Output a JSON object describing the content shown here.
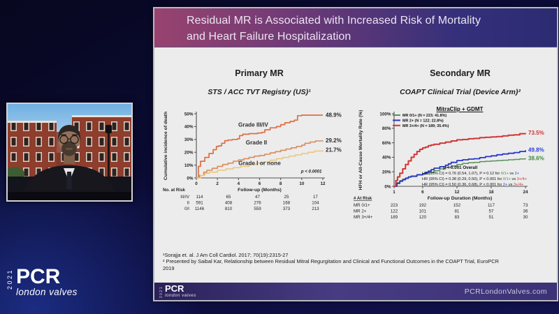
{
  "slide": {
    "title_line1": "Residual MR is Associated with Increased Risk of Mortality",
    "title_line2": "and Heart Failure Hospitalization",
    "footer": {
      "cite1": "¹Sorajja et. al.  J Am Coll Cardiol. 2017; 70(19):2315-27",
      "cite2": "² Presented by Saibal Kar, Relationship between Residual Mitral Regurgitation and Clinical and Functional Outcomes in the COAPT Trial, EuroPCR",
      "cite2_cont": "2019"
    },
    "bottom_bar": {
      "year": "2021",
      "brand": "PCR",
      "brand_sub": "london valves",
      "website": "PCRLondonValves.com"
    }
  },
  "outer_logo": {
    "year": "2021",
    "brand": "PCR",
    "brand_sub": "london valves"
  },
  "colors": {
    "title_bar_left": "#99436f",
    "title_bar_right": "#2b2b72",
    "slide_bg": "#ececec",
    "grade34": "#dd6f44",
    "grade2": "#db8a58",
    "grade1": "#ecc77f",
    "mr01": "#5b8f5b",
    "mr2": "#2838c8",
    "mr34": "#d23535"
  },
  "chart_data": [
    {
      "type": "line",
      "section_title": "Primary MR",
      "subtitle": "STS / ACC TVT Registry (US)¹",
      "xlabel": "Follow-up (Months)",
      "ylabel": "Cumulative incidence of death",
      "xlim": [
        0,
        12
      ],
      "ylim": [
        0,
        50
      ],
      "xticks": [
        0,
        2,
        4,
        6,
        8,
        10,
        12
      ],
      "yticks": [
        0,
        10,
        20,
        30,
        40,
        50
      ],
      "series": [
        {
          "name": "Grade III/IV",
          "color": "#dd6f44",
          "w": 1.7,
          "end_label": "48.9%",
          "end_color": "#2b2b2b",
          "points": [
            [
              0,
              0
            ],
            [
              0.2,
              9
            ],
            [
              0.4,
              13
            ],
            [
              0.8,
              16
            ],
            [
              1.2,
              19
            ],
            [
              1.6,
              22
            ],
            [
              1.9,
              24.5
            ],
            [
              2.1,
              25
            ],
            [
              2.4,
              27
            ],
            [
              2.7,
              29
            ],
            [
              3,
              29.5
            ],
            [
              3.4,
              30
            ],
            [
              3.9,
              30.5
            ],
            [
              4.1,
              33
            ],
            [
              4.4,
              34
            ],
            [
              5,
              34.5
            ],
            [
              5.8,
              35
            ],
            [
              6.2,
              35.5
            ],
            [
              6.5,
              37.5
            ],
            [
              7,
              39
            ],
            [
              7.6,
              40
            ],
            [
              8,
              41.5
            ],
            [
              8.4,
              43
            ],
            [
              8.9,
              44
            ],
            [
              9.3,
              45
            ],
            [
              9.6,
              48.5
            ],
            [
              10,
              48.9
            ],
            [
              12,
              48.9
            ]
          ]
        },
        {
          "name": "Grade II",
          "color": "#db8a58",
          "w": 1.6,
          "end_label": "29.2%",
          "end_color": "#2b2b2b",
          "points": [
            [
              0,
              0
            ],
            [
              0.3,
              2
            ],
            [
              0.7,
              4.5
            ],
            [
              1,
              6
            ],
            [
              1.5,
              7.5
            ],
            [
              2,
              9
            ],
            [
              2.5,
              10.5
            ],
            [
              3,
              11.5
            ],
            [
              3.5,
              13
            ],
            [
              4,
              14
            ],
            [
              4.5,
              15
            ],
            [
              5,
              16
            ],
            [
              5.5,
              17
            ],
            [
              6,
              17.5
            ],
            [
              6.5,
              18.5
            ],
            [
              7,
              19.5
            ],
            [
              7.5,
              20.5
            ],
            [
              8,
              21.5
            ],
            [
              8.5,
              22.5
            ],
            [
              9,
              23.5
            ],
            [
              9.5,
              24.5
            ],
            [
              10,
              25.5
            ],
            [
              10.3,
              27
            ],
            [
              10.8,
              28
            ],
            [
              11.3,
              28.8
            ],
            [
              12,
              29.2
            ]
          ]
        },
        {
          "name": "Grade I or none",
          "color": "#ecc77f",
          "w": 1.6,
          "end_label": "21.7%",
          "end_color": "#2b2b2b",
          "points": [
            [
              0,
              0
            ],
            [
              0.4,
              2
            ],
            [
              0.8,
              3.5
            ],
            [
              1.2,
              4.5
            ],
            [
              2,
              6
            ],
            [
              2.8,
              7
            ],
            [
              3.5,
              8
            ],
            [
              4.2,
              9
            ],
            [
              5,
              10.5
            ],
            [
              5.8,
              11.5
            ],
            [
              6.4,
              12.5
            ],
            [
              7,
              13.8
            ],
            [
              7.6,
              15
            ],
            [
              8.2,
              16
            ],
            [
              8.8,
              17
            ],
            [
              9.4,
              18
            ],
            [
              10,
              19
            ],
            [
              10.6,
              20
            ],
            [
              11.2,
              21
            ],
            [
              12,
              21.7
            ]
          ]
        }
      ],
      "series_labels": [
        {
          "text": "Grade III/IV",
          "x": 5.4,
          "y": 40
        },
        {
          "text": "Grade II",
          "x": 5.7,
          "y": 26
        },
        {
          "text": "Grade I or none",
          "x": 6,
          "y": 10
        }
      ],
      "annotations": [
        {
          "x": 11.9,
          "y": 4,
          "anchor": "end",
          "bold": true,
          "italic": true,
          "parts": [
            {
              "t": "p < 0.0001",
              "c": "#222222"
            }
          ]
        }
      ],
      "risk_table": {
        "title": "No. at Risk",
        "label_anchor": "end",
        "col_x": [
          0.3,
          3.05,
          5.8,
          8.55,
          11.3
        ],
        "rows": [
          {
            "label": "III/IV",
            "values": [
              "114",
              "65",
              "47",
              "25",
              "17"
            ]
          },
          {
            "label": "II",
            "values": [
              "591",
              "408",
              "276",
              "168",
              "104"
            ]
          },
          {
            "label": "0/I",
            "values": [
              "1146",
              "810",
              "559",
              "373",
              "213"
            ]
          }
        ]
      }
    },
    {
      "type": "line",
      "section_title": "Secondary MR",
      "subtitle": "COAPT Clinical Trial (Device Arm)²",
      "chart_title": "MitraClip + GDMT",
      "xlabel": "Follow-up Duration (Months)",
      "ylabel": "HFH or All-Cause Mortality Rate (%)",
      "xlim": [
        1,
        24
      ],
      "ylim": [
        0,
        100
      ],
      "xticks": [
        1,
        6,
        12,
        18,
        24
      ],
      "yticks": [
        0,
        20,
        40,
        60,
        80,
        100
      ],
      "legend": [
        {
          "label": "MR 0/1+ (N = 223; 41.8%)",
          "color": "#5b8f5b"
        },
        {
          "label": "MR 2+ (N = 122; 22.8%)",
          "color": "#2838c8"
        },
        {
          "label": "MR 3+/4+ (N = 189; 35.4%)",
          "color": "#d23535"
        }
      ],
      "series": [
        {
          "name": "MR 0/1+",
          "color": "#5b8f5b",
          "w": 1.5,
          "end_label": "38.6%",
          "end_color": "#3f8a3f",
          "points": [
            [
              1,
              0
            ],
            [
              1.5,
              5
            ],
            [
              2,
              8
            ],
            [
              2.5,
              10
            ],
            [
              3,
              11.5
            ],
            [
              3.5,
              12.5
            ],
            [
              4,
              13.5
            ],
            [
              5,
              15.5
            ],
            [
              6,
              17
            ],
            [
              7,
              19
            ],
            [
              8,
              21.5
            ],
            [
              9,
              24
            ],
            [
              10,
              26
            ],
            [
              11,
              28
            ],
            [
              12,
              30
            ],
            [
              13,
              31.5
            ],
            [
              14,
              32.5
            ],
            [
              15,
              33
            ],
            [
              16,
              34
            ],
            [
              17,
              34.5
            ],
            [
              18,
              35
            ],
            [
              19,
              35.5
            ],
            [
              20,
              36
            ],
            [
              21,
              36.5
            ],
            [
              22,
              37
            ],
            [
              23,
              37.8
            ],
            [
              24,
              38.6
            ]
          ]
        },
        {
          "name": "MR 2+",
          "color": "#2838c8",
          "w": 1.8,
          "end_label": "49.8%",
          "end_color": "#2b3fd4",
          "points": [
            [
              1,
              0
            ],
            [
              1.5,
              4
            ],
            [
              2,
              7
            ],
            [
              2.5,
              9
            ],
            [
              3,
              11
            ],
            [
              3.5,
              13
            ],
            [
              4,
              14
            ],
            [
              5,
              16
            ],
            [
              6,
              17
            ],
            [
              6.5,
              19
            ],
            [
              7,
              21
            ],
            [
              7.5,
              23
            ],
            [
              8,
              25
            ],
            [
              9,
              27
            ],
            [
              10,
              29
            ],
            [
              10.5,
              31
            ],
            [
              11,
              33
            ],
            [
              12,
              35.5
            ],
            [
              13,
              36.5
            ],
            [
              14,
              37.5
            ],
            [
              15,
              38
            ],
            [
              16,
              39.5
            ],
            [
              17,
              41
            ],
            [
              18,
              42
            ],
            [
              19,
              43.5
            ],
            [
              20,
              44.5
            ],
            [
              21,
              45.5
            ],
            [
              22,
              46.5
            ],
            [
              23,
              48
            ],
            [
              24,
              49.8
            ]
          ]
        },
        {
          "name": "MR 3+/4+",
          "color": "#d23535",
          "w": 2,
          "end_label": "73.5%",
          "end_color": "#cc3333",
          "points": [
            [
              1,
              0
            ],
            [
              1.3,
              8
            ],
            [
              1.6,
              13
            ],
            [
              2,
              18
            ],
            [
              2.5,
              24
            ],
            [
              3,
              30
            ],
            [
              3.5,
              35
            ],
            [
              4,
              40
            ],
            [
              4.5,
              44
            ],
            [
              5,
              48
            ],
            [
              5.5,
              51
            ],
            [
              6,
              53
            ],
            [
              6.5,
              54
            ],
            [
              7,
              56
            ],
            [
              7.5,
              57
            ],
            [
              8,
              58
            ],
            [
              9,
              59.5
            ],
            [
              10,
              61
            ],
            [
              11,
              62.5
            ],
            [
              12,
              64
            ],
            [
              13,
              64.5
            ],
            [
              14,
              65.5
            ],
            [
              15,
              66
            ],
            [
              16,
              67
            ],
            [
              17,
              67.5
            ],
            [
              18,
              68
            ],
            [
              19,
              68.5
            ],
            [
              20,
              69.5
            ],
            [
              21,
              70.5
            ],
            [
              22,
              71
            ],
            [
              23,
              72.5
            ],
            [
              24,
              73.5
            ]
          ]
        }
      ],
      "annotations": [
        {
          "x": 12.6,
          "y": 24,
          "anchor": "middle",
          "bold": true,
          "parts": [
            {
              "t": "p < 0.001 Overall",
              "c": "#111111"
            }
          ]
        },
        {
          "x": 5.9,
          "y": 16.5,
          "parts": [
            {
              "t": "HR (95% CI) = 0.76 (0.54, 1.07), P = 0.12 for ",
              "c": "#111111"
            },
            {
              "t": "0/1+",
              "c": "#3f8a3f"
            },
            {
              "t": " vs ",
              "c": "#111111"
            },
            {
              "t": "2+",
              "c": "#2b3fd4"
            }
          ]
        },
        {
          "x": 5.9,
          "y": 8.5,
          "parts": [
            {
              "t": "HR (95% CI) = 0.38 (0.29, 0.50), P < 0.001 for ",
              "c": "#111111"
            },
            {
              "t": "0/1+",
              "c": "#3f8a3f"
            },
            {
              "t": " vs ",
              "c": "#111111"
            },
            {
              "t": "3+/4+",
              "c": "#cc3333"
            }
          ]
        },
        {
          "x": 5.9,
          "y": 1.2,
          "parts": [
            {
              "t": "HR (95% CI) = 0.50 (0.36, 0.68), P < 0.001 for ",
              "c": "#111111"
            },
            {
              "t": "2+",
              "c": "#2b3fd4"
            },
            {
              "t": " vs ",
              "c": "#111111"
            },
            {
              "t": "3+/4+",
              "c": "#cc3333"
            }
          ]
        }
      ],
      "risk_table": {
        "title": "# At Risk",
        "underline": true,
        "label_anchor": "start",
        "col_x": [
          1,
          6,
          12,
          18,
          24
        ],
        "rows": [
          {
            "label": "MR 0/1+",
            "values": [
              "223",
              "192",
              "152",
              "117",
              "73"
            ]
          },
          {
            "label": "MR 2+",
            "values": [
              "122",
              "101",
              "81",
              "57",
              "36"
            ]
          },
          {
            "label": "MR 3+/4+",
            "values": [
              "189",
              "120",
              "83",
              "51",
              "30"
            ]
          }
        ]
      }
    }
  ]
}
